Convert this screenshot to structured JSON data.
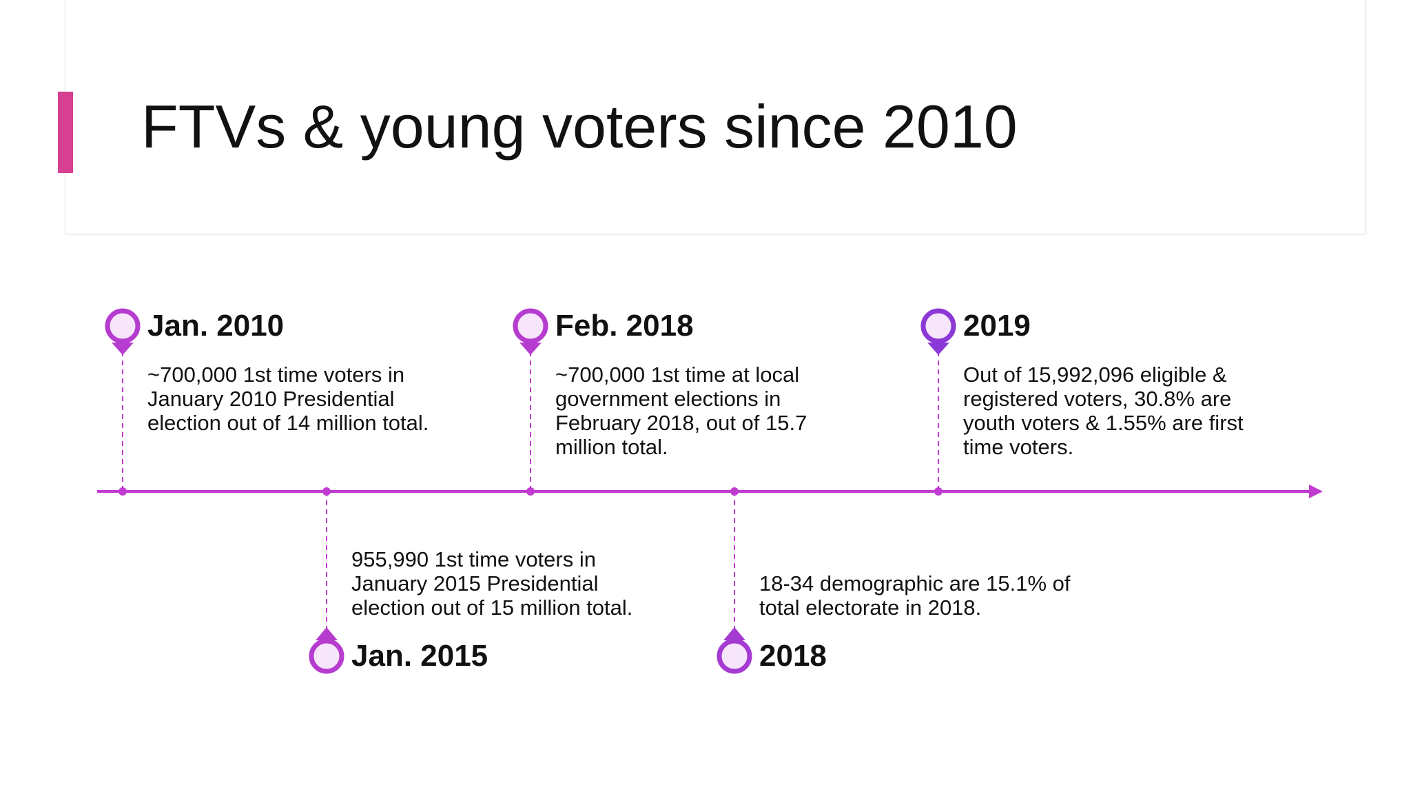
{
  "slide": {
    "title": "FTVs & young voters since 2010"
  },
  "colors": {
    "accent_bar": "#d63f92",
    "timeline": "#c03cd0",
    "marker_a": "#b63ccf",
    "marker_b": "#8c38d6",
    "marker_fill": "#f7e6fb"
  },
  "timeline": {
    "events": [
      {
        "label": "Jan. 2010",
        "description": "~700,000 1st time voters in\nJanuary 2010 Presidential\nelection out of 14 million total."
      },
      {
        "label": "Jan. 2015",
        "description": "955,990 1st time voters in\nJanuary 2015 Presidential\nelection out of 15 million total."
      },
      {
        "label": "Feb. 2018",
        "description": "~700,000 1st time at local\ngovernment elections in\nFebruary 2018, out of 15.7\nmillion total."
      },
      {
        "label": "2018",
        "description": "18-34 demographic are 15.1% of\ntotal electorate in 2018."
      },
      {
        "label": "2019",
        "description": "Out of 15,992,096 eligible &\nregistered voters, 30.8% are\nyouth voters & 1.55% are first\ntime voters."
      }
    ]
  }
}
